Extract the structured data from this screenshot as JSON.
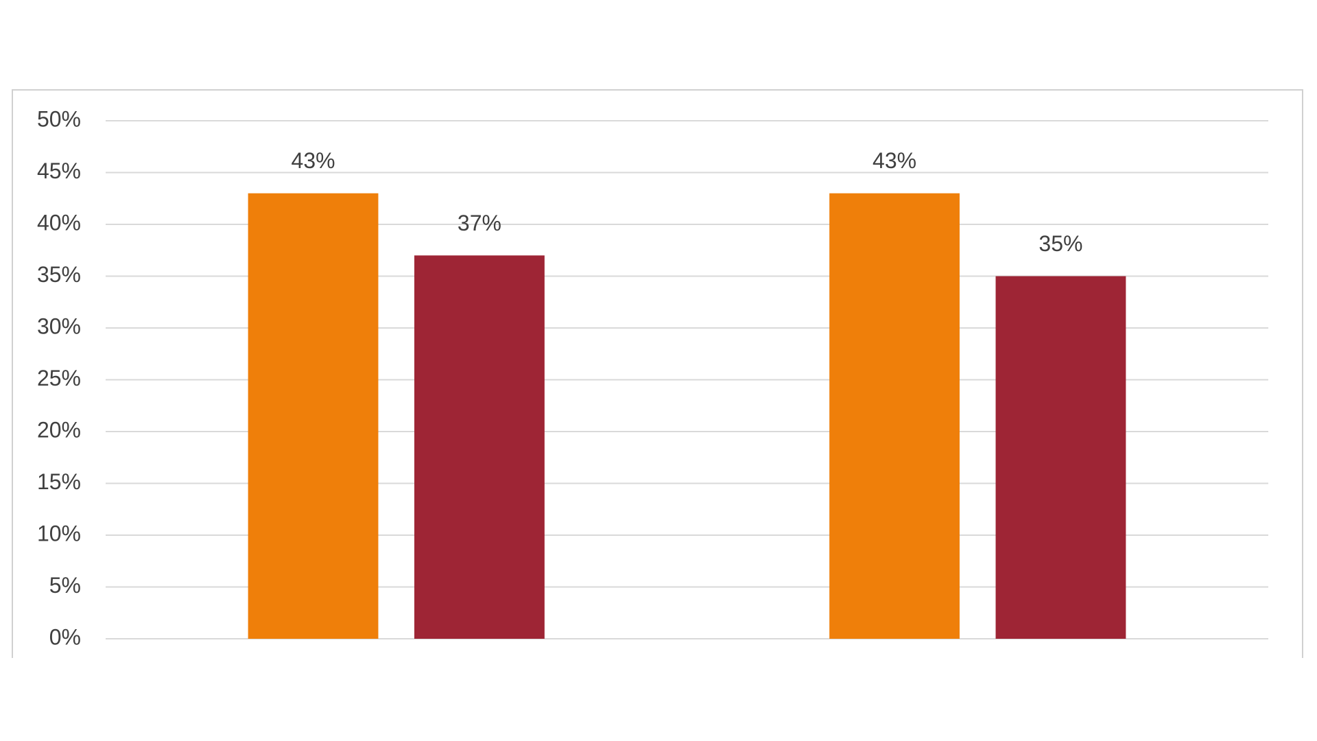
{
  "chart_data": {
    "type": "bar",
    "categories": [
      null,
      null
    ],
    "series": [
      {
        "color": "#ef7f0a",
        "values": [
          43,
          43
        ],
        "value_labels": [
          "43%",
          "43%"
        ]
      },
      {
        "color": "#9e2535",
        "values": [
          37,
          35
        ],
        "value_labels": [
          "37%",
          "35%"
        ]
      }
    ],
    "ylim": [
      0,
      50
    ],
    "yticks": [
      {
        "value": 0,
        "label": "0%"
      },
      {
        "value": 5,
        "label": "5%"
      },
      {
        "value": 10,
        "label": "10%"
      },
      {
        "value": 15,
        "label": "15%"
      },
      {
        "value": 20,
        "label": "20%"
      },
      {
        "value": 25,
        "label": "25%"
      },
      {
        "value": 30,
        "label": "30%"
      },
      {
        "value": 35,
        "label": "35%"
      },
      {
        "value": 40,
        "label": "40%"
      },
      {
        "value": 45,
        "label": "45%"
      },
      {
        "value": 50,
        "label": "50%"
      }
    ],
    "grid": true
  }
}
